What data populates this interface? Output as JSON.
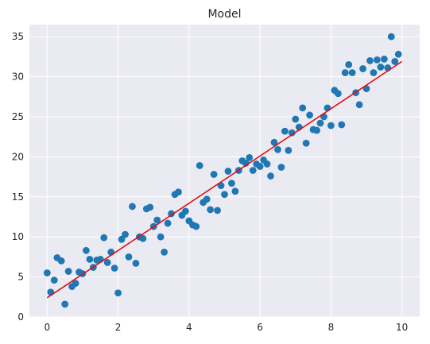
{
  "chart_data": {
    "type": "scatter",
    "title": "Model",
    "xlabel": "",
    "ylabel": "",
    "xlim": [
      -0.5,
      10.5
    ],
    "ylim": [
      0,
      36.5
    ],
    "x_ticks": [
      0,
      2,
      4,
      6,
      8,
      10
    ],
    "y_ticks": [
      0,
      5,
      10,
      15,
      20,
      25,
      30,
      35
    ],
    "grid": true,
    "legend": "none",
    "colors": {
      "plot_background": "#eaeaf2",
      "grid": "#ffffff",
      "points": "#1f77b4",
      "fit_line": "#e30e0e",
      "text": "#262626"
    },
    "series": [
      {
        "kind": "scatter",
        "points": [
          [
            0.0,
            5.5
          ],
          [
            0.1,
            3.1
          ],
          [
            0.2,
            4.6
          ],
          [
            0.28,
            7.4
          ],
          [
            0.4,
            7.0
          ],
          [
            0.5,
            1.6
          ],
          [
            0.6,
            5.7
          ],
          [
            0.7,
            3.8
          ],
          [
            0.8,
            4.2
          ],
          [
            0.9,
            5.6
          ],
          [
            1.0,
            5.4
          ],
          [
            1.1,
            8.3
          ],
          [
            1.2,
            7.2
          ],
          [
            1.3,
            6.2
          ],
          [
            1.4,
            7.1
          ],
          [
            1.5,
            7.2
          ],
          [
            1.6,
            9.9
          ],
          [
            1.7,
            6.8
          ],
          [
            1.8,
            8.1
          ],
          [
            1.9,
            6.1
          ],
          [
            2.0,
            3.0
          ],
          [
            2.1,
            9.7
          ],
          [
            2.2,
            10.3
          ],
          [
            2.3,
            7.5
          ],
          [
            2.4,
            13.8
          ],
          [
            2.5,
            6.7
          ],
          [
            2.6,
            10.0
          ],
          [
            2.7,
            9.8
          ],
          [
            2.8,
            13.5
          ],
          [
            2.9,
            13.7
          ],
          [
            3.0,
            11.3
          ],
          [
            3.1,
            12.1
          ],
          [
            3.2,
            10.0
          ],
          [
            3.3,
            8.1
          ],
          [
            3.4,
            11.7
          ],
          [
            3.5,
            12.9
          ],
          [
            3.6,
            15.3
          ],
          [
            3.7,
            15.6
          ],
          [
            3.8,
            12.7
          ],
          [
            3.9,
            13.2
          ],
          [
            4.0,
            12.0
          ],
          [
            4.1,
            11.5
          ],
          [
            4.2,
            11.3
          ],
          [
            4.3,
            18.9
          ],
          [
            4.4,
            14.3
          ],
          [
            4.5,
            14.7
          ],
          [
            4.6,
            13.4
          ],
          [
            4.7,
            17.8
          ],
          [
            4.8,
            13.3
          ],
          [
            4.9,
            16.4
          ],
          [
            5.0,
            15.3
          ],
          [
            5.1,
            18.2
          ],
          [
            5.2,
            16.7
          ],
          [
            5.3,
            15.7
          ],
          [
            5.4,
            18.3
          ],
          [
            5.5,
            19.5
          ],
          [
            5.6,
            19.2
          ],
          [
            5.7,
            19.9
          ],
          [
            5.8,
            18.3
          ],
          [
            5.9,
            19.1
          ],
          [
            6.0,
            18.8
          ],
          [
            6.1,
            19.6
          ],
          [
            6.2,
            19.1
          ],
          [
            6.3,
            17.6
          ],
          [
            6.4,
            21.8
          ],
          [
            6.5,
            20.9
          ],
          [
            6.6,
            18.7
          ],
          [
            6.7,
            23.2
          ],
          [
            6.8,
            20.8
          ],
          [
            6.9,
            23.0
          ],
          [
            7.0,
            24.7
          ],
          [
            7.1,
            23.7
          ],
          [
            7.2,
            26.1
          ],
          [
            7.3,
            21.7
          ],
          [
            7.4,
            25.2
          ],
          [
            7.5,
            23.4
          ],
          [
            7.6,
            23.3
          ],
          [
            7.7,
            24.2
          ],
          [
            7.8,
            25.0
          ],
          [
            7.9,
            26.1
          ],
          [
            8.0,
            23.9
          ],
          [
            8.1,
            28.3
          ],
          [
            8.2,
            27.9
          ],
          [
            8.3,
            24.0
          ],
          [
            8.4,
            30.5
          ],
          [
            8.5,
            31.5
          ],
          [
            8.6,
            30.5
          ],
          [
            8.7,
            28.0
          ],
          [
            8.8,
            26.5
          ],
          [
            8.9,
            31.0
          ],
          [
            9.0,
            28.5
          ],
          [
            9.1,
            32.0
          ],
          [
            9.2,
            30.5
          ],
          [
            9.3,
            32.1
          ],
          [
            9.4,
            31.2
          ],
          [
            9.5,
            32.2
          ],
          [
            9.6,
            31.1
          ],
          [
            9.7,
            35.0
          ],
          [
            9.8,
            31.9
          ],
          [
            9.9,
            32.8
          ]
        ]
      },
      {
        "kind": "line",
        "points": [
          [
            0,
            2.4
          ],
          [
            10,
            31.9
          ]
        ]
      }
    ]
  }
}
